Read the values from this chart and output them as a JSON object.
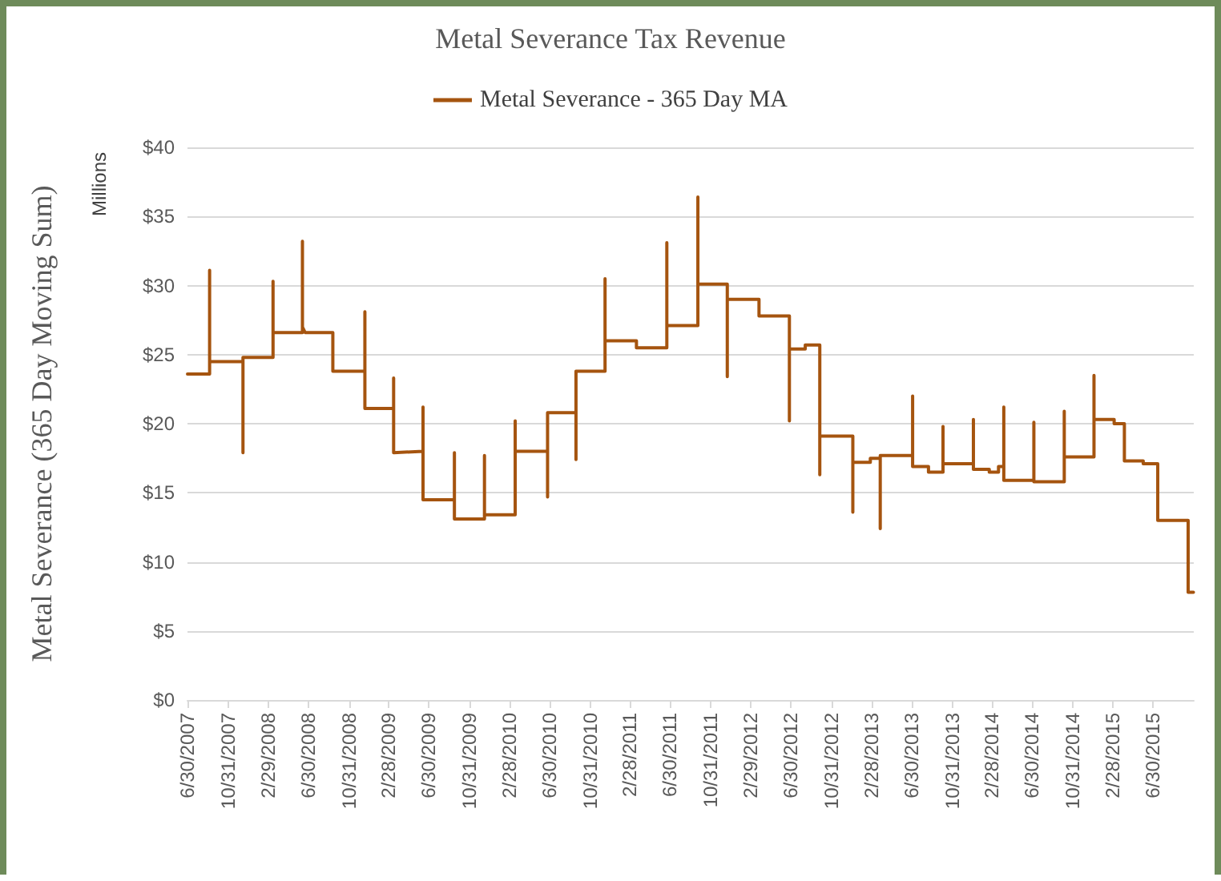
{
  "chart_data": {
    "type": "line",
    "title": "Metal Severance Tax Revenue",
    "ylabel": "Metal Severance (365 Day Moving Sum)",
    "annotations": [
      "Millions"
    ],
    "legend": "top",
    "grid": "y",
    "marker": "none",
    "line_style": "solid",
    "xlim": [
      "2007-06-30",
      "2015-11-01"
    ],
    "xticks": [
      {
        "value": "2007-06-30",
        "label": "6/30/2007"
      },
      {
        "value": "2007-10-31",
        "label": "10/31/2007"
      },
      {
        "value": "2008-02-29",
        "label": "2/29/2008"
      },
      {
        "value": "2008-06-30",
        "label": "6/30/2008"
      },
      {
        "value": "2008-10-31",
        "label": "10/31/2008"
      },
      {
        "value": "2009-02-28",
        "label": "2/28/2009"
      },
      {
        "value": "2009-06-30",
        "label": "6/30/2009"
      },
      {
        "value": "2009-10-31",
        "label": "10/31/2009"
      },
      {
        "value": "2010-02-28",
        "label": "2/28/2010"
      },
      {
        "value": "2010-06-30",
        "label": "6/30/2010"
      },
      {
        "value": "2010-10-31",
        "label": "10/31/2010"
      },
      {
        "value": "2011-02-28",
        "label": "2/28/2011"
      },
      {
        "value": "2011-06-30",
        "label": "6/30/2011"
      },
      {
        "value": "2011-10-31",
        "label": "10/31/2011"
      },
      {
        "value": "2012-02-29",
        "label": "2/29/2012"
      },
      {
        "value": "2012-06-30",
        "label": "6/30/2012"
      },
      {
        "value": "2012-10-31",
        "label": "10/31/2012"
      },
      {
        "value": "2013-02-28",
        "label": "2/28/2013"
      },
      {
        "value": "2013-06-30",
        "label": "6/30/2013"
      },
      {
        "value": "2013-10-31",
        "label": "10/31/2013"
      },
      {
        "value": "2014-02-28",
        "label": "2/28/2014"
      },
      {
        "value": "2014-06-30",
        "label": "6/30/2014"
      },
      {
        "value": "2014-10-31",
        "label": "10/31/2014"
      },
      {
        "value": "2015-02-28",
        "label": "2/28/2015"
      },
      {
        "value": "2015-06-30",
        "label": "6/30/2015"
      }
    ],
    "ylim": [
      0,
      40
    ],
    "yticks": [
      {
        "value": 0,
        "label": "$0"
      },
      {
        "value": 5,
        "label": "$5"
      },
      {
        "value": 10,
        "label": "$10"
      },
      {
        "value": 15,
        "label": "$15"
      },
      {
        "value": 20,
        "label": "$20"
      },
      {
        "value": 25,
        "label": "$25"
      },
      {
        "value": 30,
        "label": "$30"
      },
      {
        "value": 35,
        "label": "$35"
      },
      {
        "value": 40,
        "label": "$40"
      }
    ],
    "series": [
      {
        "name": "Metal Severance - 365 Day MA",
        "color": "#a5540f",
        "x": [
          "2007-06-30",
          "2007-09-05",
          "2007-09-05",
          "2007-09-05",
          "2007-12-15",
          "2007-12-15",
          "2007-12-15",
          "2008-03-15",
          "2008-03-15",
          "2008-03-15",
          "2008-06-12",
          "2008-06-12",
          "2008-06-12",
          "2008-06-20",
          "2008-09-12",
          "2008-09-12",
          "2008-12-18",
          "2008-12-18",
          "2008-12-18",
          "2009-03-15",
          "2009-03-15",
          "2009-03-15",
          "2009-06-12",
          "2009-06-12",
          "2009-06-12",
          "2009-09-15",
          "2009-09-15",
          "2009-09-15",
          "2009-12-15",
          "2009-12-15",
          "2009-12-15",
          "2010-03-18",
          "2010-03-18",
          "2010-03-18",
          "2010-06-24",
          "2010-06-24",
          "2010-06-24",
          "2010-09-18",
          "2010-09-18",
          "2010-09-18",
          "2010-12-15",
          "2010-12-15",
          "2010-12-15",
          "2011-03-20",
          "2011-03-20",
          "2011-06-20",
          "2011-06-20",
          "2011-06-20",
          "2011-09-22",
          "2011-09-22",
          "2011-09-22",
          "2011-12-20",
          "2011-12-20",
          "2011-12-20",
          "2012-03-25",
          "2012-03-25",
          "2012-06-25",
          "2012-06-25",
          "2012-06-25",
          "2012-08-12",
          "2012-08-12",
          "2012-09-25",
          "2012-09-25",
          "2012-09-25",
          "2013-01-03",
          "2013-01-03",
          "2013-01-03",
          "2013-02-25",
          "2013-02-25",
          "2013-03-27",
          "2013-03-27",
          "2013-03-27",
          "2013-07-03",
          "2013-07-03",
          "2013-07-03",
          "2013-08-20",
          "2013-08-20",
          "2013-10-03",
          "2013-10-03",
          "2013-10-03",
          "2014-01-03",
          "2014-01-03",
          "2014-01-03",
          "2014-02-20",
          "2014-02-20",
          "2014-03-20",
          "2014-03-20",
          "2014-04-05",
          "2014-04-05",
          "2014-04-05",
          "2014-07-05",
          "2014-07-05",
          "2014-07-05",
          "2014-10-05",
          "2014-10-05",
          "2014-10-05",
          "2015-01-03",
          "2015-01-03",
          "2015-01-03",
          "2015-03-05",
          "2015-03-05",
          "2015-04-05",
          "2015-04-05",
          "2015-06-01",
          "2015-06-01",
          "2015-07-15",
          "2015-07-15",
          "2015-10-15",
          "2015-10-15",
          "2015-10-31"
        ],
        "values": [
          23.6,
          23.6,
          31.1,
          24.5,
          24.5,
          17.9,
          24.8,
          24.8,
          30.3,
          26.6,
          26.6,
          33.2,
          27.0,
          26.6,
          26.6,
          23.8,
          23.8,
          28.1,
          21.1,
          21.1,
          23.3,
          17.9,
          18.0,
          21.2,
          14.5,
          14.5,
          17.9,
          13.1,
          13.1,
          17.7,
          13.4,
          13.4,
          20.2,
          18.0,
          18.0,
          14.7,
          20.8,
          20.8,
          17.4,
          23.8,
          23.8,
          30.5,
          26.0,
          26.0,
          25.5,
          25.5,
          33.1,
          27.1,
          27.1,
          36.4,
          30.1,
          30.1,
          23.4,
          29.0,
          29.0,
          27.8,
          27.8,
          20.2,
          25.4,
          25.4,
          25.7,
          25.7,
          16.3,
          19.1,
          19.1,
          13.6,
          17.2,
          17.2,
          17.5,
          17.5,
          12.4,
          17.7,
          17.7,
          22.0,
          16.9,
          16.9,
          16.5,
          16.5,
          19.8,
          17.1,
          17.1,
          20.3,
          16.7,
          16.7,
          16.5,
          16.5,
          16.9,
          16.9,
          21.2,
          15.9,
          15.9,
          20.1,
          15.8,
          15.8,
          20.9,
          17.6,
          17.6,
          23.5,
          20.3,
          20.3,
          20.0,
          20.0,
          17.3,
          17.3,
          17.1,
          17.1,
          13.0,
          13.0,
          7.8,
          7.8
        ]
      }
    ]
  }
}
